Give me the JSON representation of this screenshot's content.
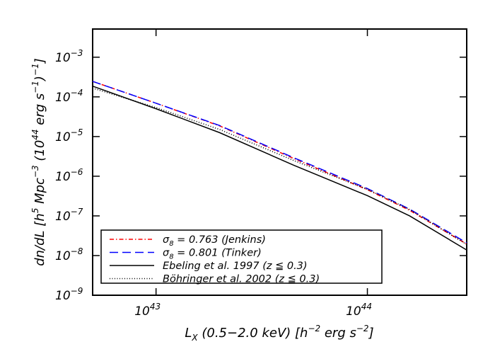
{
  "chart_data": {
    "type": "line",
    "title": "",
    "xscale": "log",
    "yscale": "log",
    "xlabel": {
      "base": "L",
      "sub": "X",
      "rest1": " (0.5−2.0 keV) [h",
      "sup1": "−2",
      "rest2": " erg s",
      "sup2": "−1",
      "rest3": "]"
    },
    "ylabel": {
      "p1": "dn/dL [h",
      "s1": "5",
      "p2": " Mpc",
      "s2": "−3",
      "p3": " (10",
      "s3": "44",
      "p4": " erg s",
      "s4": "−1",
      "p5": ")",
      "s5": "−1",
      "p6": "]"
    },
    "xlim_log10": [
      42.7,
      44.47
    ],
    "ylim_log10": [
      -9,
      -2.29
    ],
    "xticks": [
      {
        "log": 43,
        "base": "10",
        "exp": "43"
      },
      {
        "log": 44,
        "base": "10",
        "exp": "44"
      }
    ],
    "yticks": [
      {
        "log": -3,
        "base": "10",
        "exp": "−3"
      },
      {
        "log": -4,
        "base": "10",
        "exp": "−4"
      },
      {
        "log": -5,
        "base": "10",
        "exp": "−5"
      },
      {
        "log": -6,
        "base": "10",
        "exp": "−6"
      },
      {
        "log": -7,
        "base": "10",
        "exp": "−7"
      },
      {
        "log": -8,
        "base": "10",
        "exp": "−8"
      },
      {
        "log": -9,
        "base": "10",
        "exp": "−9"
      }
    ],
    "x_log10": [
      42.7,
      43.0,
      43.3,
      43.65,
      44.0,
      44.2,
      44.47
    ],
    "series": [
      {
        "name": "jenkins",
        "label": {
          "sym": "σ",
          "sub": "8",
          "text": " = 0.763 (Jenkins)"
        },
        "color": "#ff0000",
        "dash": "6,3,1.5,3",
        "y_log10": [
          -3.61,
          -4.16,
          -4.73,
          -5.55,
          -6.34,
          -6.86,
          -7.71
        ]
      },
      {
        "name": "tinker",
        "label": {
          "sym": "σ",
          "sub": "8",
          "text": " = 0.801 (Tinker)"
        },
        "color": "#0000ff",
        "dash": "12,6",
        "y_log10": [
          -3.61,
          -4.16,
          -4.72,
          -5.53,
          -6.31,
          -6.83,
          -7.68
        ]
      },
      {
        "name": "ebeling",
        "label": {
          "sym": "",
          "sub": "",
          "text": "Ebeling et al. 1997 (z ≦ 0.3)"
        },
        "color": "#000000",
        "dash": "",
        "y_log10": [
          -3.73,
          -4.3,
          -4.9,
          -5.72,
          -6.49,
          -7.0,
          -7.86
        ]
      },
      {
        "name": "bohringer",
        "label": {
          "sym": "",
          "sub": "",
          "text": "Böhringer et al. 2002 (z ≦ 0.3)"
        },
        "color": "#000000",
        "dash": "1,2.5",
        "y_log10": [
          -3.78,
          -4.27,
          -4.82,
          -5.6,
          -6.33,
          -6.84,
          -7.72
        ]
      }
    ],
    "legend_position": "bottom-left",
    "grid": false
  }
}
